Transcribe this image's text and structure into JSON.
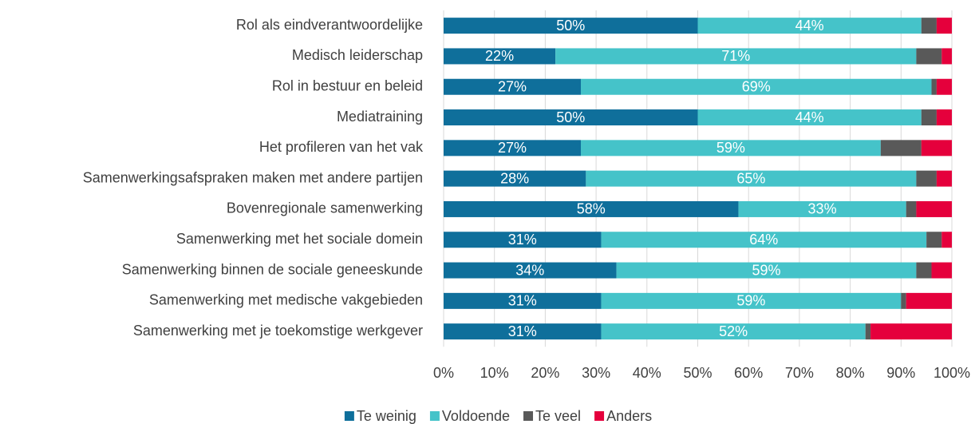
{
  "chart_data": {
    "type": "stacked-bar-horizontal",
    "categories": [
      "Rol als eindverantwoordelijke",
      "Medisch leiderschap",
      "Rol in bestuur en beleid",
      "Mediatraining",
      "Het profileren van het vak",
      "Samenwerkingsafspraken maken met andere partijen",
      "Bovenregionale samenwerking",
      "Samenwerking met het sociale domein",
      "Samenwerking binnen de sociale geneeskunde",
      "Samenwerking met medische vakgebieden",
      "Samenwerking met je toekomstige werkgever"
    ],
    "series": [
      {
        "name": "Te weinig",
        "color": "#0f6f9b",
        "values": [
          50,
          22,
          27,
          50,
          27,
          28,
          58,
          31,
          34,
          31,
          31
        ],
        "value_labels": [
          "50%",
          "22%",
          "27%",
          "50%",
          "27%",
          "28%",
          "58%",
          "31%",
          "34%",
          "31%",
          "31%"
        ]
      },
      {
        "name": "Voldoende",
        "color": "#45c3c9",
        "values": [
          44,
          71,
          69,
          44,
          59,
          65,
          33,
          64,
          59,
          59,
          52
        ],
        "value_labels": [
          "44%",
          "71%",
          "69%",
          "44%",
          "59%",
          "65%",
          "33%",
          "64%",
          "59%",
          "59%",
          "52%"
        ]
      },
      {
        "name": "Te veel",
        "color": "#595959",
        "values": [
          3,
          5,
          1,
          3,
          8,
          4,
          2,
          3,
          3,
          1,
          1
        ]
      },
      {
        "name": "Anders",
        "color": "#e5003c",
        "values": [
          3,
          2,
          3,
          3,
          6,
          3,
          7,
          2,
          4,
          9,
          16
        ]
      }
    ],
    "xlim": [
      0,
      100
    ],
    "xticks": [
      {
        "value": 0,
        "label": "0%"
      },
      {
        "value": 10,
        "label": "10%"
      },
      {
        "value": 20,
        "label": "20%"
      },
      {
        "value": 30,
        "label": "30%"
      },
      {
        "value": 40,
        "label": "40%"
      },
      {
        "value": 50,
        "label": "50%"
      },
      {
        "value": 60,
        "label": "60%"
      },
      {
        "value": 70,
        "label": "70%"
      },
      {
        "value": 80,
        "label": "80%"
      },
      {
        "value": 90,
        "label": "90%"
      },
      {
        "value": 100,
        "label": "100%"
      }
    ],
    "grid": true,
    "legend": "bottom"
  }
}
